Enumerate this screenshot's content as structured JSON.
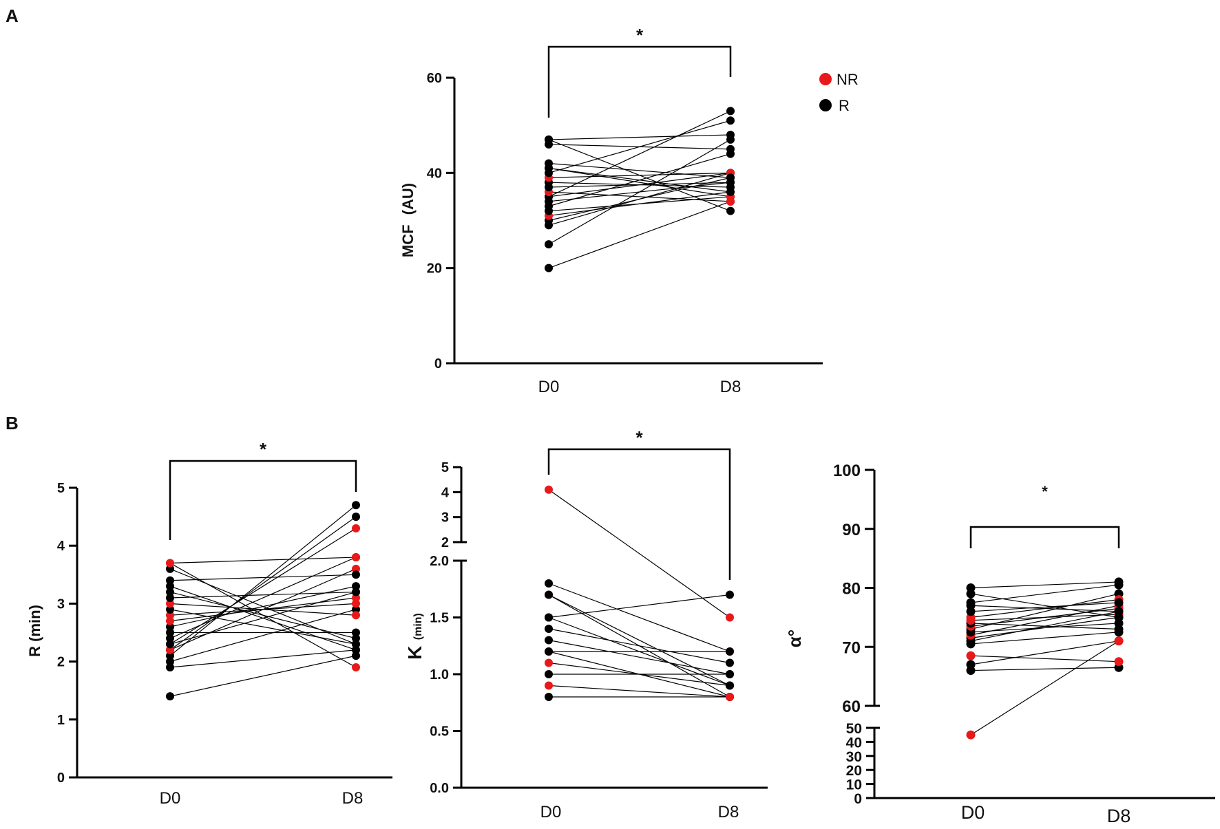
{
  "figure": {
    "panel_a_label": "A",
    "panel_b_label": "B"
  },
  "legend": {
    "nr_label": "NR",
    "r_label": "R",
    "nr_color": "#e8191b",
    "r_color": "#000000"
  },
  "chart_data": [
    {
      "id": "mcf",
      "type": "line",
      "title": "",
      "ylabel_main": "MCF",
      "ylabel_unit": "(AU)",
      "xlabel": "",
      "categories": [
        "D0",
        "D8"
      ],
      "ylim": [
        0,
        60
      ],
      "yticks": [
        0,
        20,
        40,
        60
      ],
      "significance": "*",
      "pairs": [
        {
          "d0": 20,
          "d8": 34,
          "group": "R"
        },
        {
          "d0": 25,
          "d8": 47,
          "group": "R"
        },
        {
          "d0": 29,
          "d8": 40,
          "group": "R"
        },
        {
          "d0": 30,
          "d8": 39,
          "group": "R"
        },
        {
          "d0": 31,
          "d8": 36,
          "group": "NR"
        },
        {
          "d0": 32,
          "d8": 35,
          "group": "R"
        },
        {
          "d0": 33,
          "d8": 44,
          "group": "R"
        },
        {
          "d0": 34,
          "d8": 38,
          "group": "R"
        },
        {
          "d0": 35,
          "d8": 53,
          "group": "R"
        },
        {
          "d0": 35,
          "d8": 40,
          "group": "R"
        },
        {
          "d0": 36,
          "d8": 34,
          "group": "NR"
        },
        {
          "d0": 37,
          "d8": 38,
          "group": "R"
        },
        {
          "d0": 38,
          "d8": 37,
          "group": "R"
        },
        {
          "d0": 39,
          "d8": 40,
          "group": "NR"
        },
        {
          "d0": 40,
          "d8": 51,
          "group": "R"
        },
        {
          "d0": 41,
          "d8": 35,
          "group": "NR"
        },
        {
          "d0": 41,
          "d8": 36,
          "group": "R"
        },
        {
          "d0": 42,
          "d8": 39,
          "group": "R"
        },
        {
          "d0": 46,
          "d8": 45,
          "group": "R"
        },
        {
          "d0": 47,
          "d8": 32,
          "group": "R"
        },
        {
          "d0": 47,
          "d8": 48,
          "group": "R"
        }
      ]
    },
    {
      "id": "r_time",
      "type": "line",
      "title": "",
      "ylabel": "R (min)",
      "categories": [
        "D0",
        "D8"
      ],
      "ylim": [
        0,
        5
      ],
      "yticks": [
        0,
        1,
        2,
        3,
        4,
        5
      ],
      "significance": "*",
      "pairs": [
        {
          "d0": 1.4,
          "d8": 2.1,
          "group": "R"
        },
        {
          "d0": 1.9,
          "d8": 2.2,
          "group": "R"
        },
        {
          "d0": 2.0,
          "d8": 2.9,
          "group": "R"
        },
        {
          "d0": 2.1,
          "d8": 4.7,
          "group": "R"
        },
        {
          "d0": 2.2,
          "d8": 4.5,
          "group": "R"
        },
        {
          "d0": 2.2,
          "d8": 3.6,
          "group": "NR"
        },
        {
          "d0": 2.3,
          "d8": 4.3,
          "group": "NR"
        },
        {
          "d0": 2.3,
          "d8": 3.2,
          "group": "R"
        },
        {
          "d0": 2.4,
          "d8": 3.8,
          "group": "R"
        },
        {
          "d0": 2.5,
          "d8": 2.5,
          "group": "R"
        },
        {
          "d0": 2.6,
          "d8": 3.3,
          "group": "R"
        },
        {
          "d0": 2.7,
          "d8": 3.1,
          "group": "NR"
        },
        {
          "d0": 2.8,
          "d8": 3.0,
          "group": "NR"
        },
        {
          "d0": 2.9,
          "d8": 2.3,
          "group": "R"
        },
        {
          "d0": 3.0,
          "d8": 2.8,
          "group": "NR"
        },
        {
          "d0": 3.1,
          "d8": 3.2,
          "group": "R"
        },
        {
          "d0": 3.2,
          "d8": 2.4,
          "group": "R"
        },
        {
          "d0": 3.3,
          "d8": 2.2,
          "group": "R"
        },
        {
          "d0": 3.4,
          "d8": 3.5,
          "group": "R"
        },
        {
          "d0": 3.6,
          "d8": 2.3,
          "group": "R"
        },
        {
          "d0": 3.7,
          "d8": 3.8,
          "group": "NR"
        },
        {
          "d0": 3.7,
          "d8": 1.9,
          "group": "NR"
        }
      ]
    },
    {
      "id": "k_time",
      "type": "line",
      "title": "",
      "ylabel_main": "K",
      "ylabel_unit": "(min)",
      "categories": [
        "D0",
        "D8"
      ],
      "axis_break": true,
      "lower_ticks": [
        "0.0",
        "0.5",
        "1.0",
        "1.5",
        "2.0"
      ],
      "upper_ticks": [
        "2",
        "3",
        "4",
        "5"
      ],
      "lower_ylim": [
        0,
        2
      ],
      "upper_ylim": [
        2,
        5
      ],
      "significance": "*",
      "pairs": [
        {
          "d0": 0.8,
          "d8": 0.8,
          "group": "R"
        },
        {
          "d0": 0.9,
          "d8": 0.8,
          "group": "NR"
        },
        {
          "d0": 1.0,
          "d8": 1.0,
          "group": "R"
        },
        {
          "d0": 1.1,
          "d8": 0.9,
          "group": "NR"
        },
        {
          "d0": 1.2,
          "d8": 1.2,
          "group": "NR"
        },
        {
          "d0": 1.2,
          "d8": 0.8,
          "group": "R"
        },
        {
          "d0": 1.3,
          "d8": 1.0,
          "group": "R"
        },
        {
          "d0": 1.4,
          "d8": 1.1,
          "group": "R"
        },
        {
          "d0": 1.5,
          "d8": 1.7,
          "group": "R"
        },
        {
          "d0": 1.5,
          "d8": 0.9,
          "group": "R"
        },
        {
          "d0": 1.7,
          "d8": 0.8,
          "group": "NR"
        },
        {
          "d0": 1.8,
          "d8": 1.2,
          "group": "R"
        },
        {
          "d0": 1.7,
          "d8": 0.9,
          "group": "R"
        },
        {
          "d0": 4.1,
          "d8": 1.5,
          "group": "NR"
        }
      ]
    },
    {
      "id": "alpha",
      "type": "line",
      "title": "",
      "ylabel": "α°",
      "categories": [
        "D0",
        "D8"
      ],
      "axis_break": true,
      "upper_ticks": [
        60,
        70,
        80,
        90,
        100
      ],
      "lower_ticks": [
        0,
        10,
        20,
        30,
        40,
        50
      ],
      "upper_ylim": [
        60,
        100
      ],
      "lower_ylim": [
        0,
        50
      ],
      "significance": "*",
      "pairs": [
        {
          "d0": 66.0,
          "d8": 66.5,
          "group": "R"
        },
        {
          "d0": 67.0,
          "d8": 71.0,
          "group": "R"
        },
        {
          "d0": 68.5,
          "d8": 67.5,
          "group": "NR"
        },
        {
          "d0": 70.5,
          "d8": 72.5,
          "group": "R"
        },
        {
          "d0": 71.0,
          "d8": 76.0,
          "group": "R"
        },
        {
          "d0": 71.5,
          "d8": 75.0,
          "group": "R"
        },
        {
          "d0": 72.0,
          "d8": 77.0,
          "group": "NR"
        },
        {
          "d0": 72.5,
          "d8": 74.0,
          "group": "R"
        },
        {
          "d0": 73.0,
          "d8": 79.0,
          "group": "R"
        },
        {
          "d0": 73.5,
          "d8": 76.5,
          "group": "NR"
        },
        {
          "d0": 74.0,
          "d8": 73.0,
          "group": "R"
        },
        {
          "d0": 74.5,
          "d8": 75.5,
          "group": "NR"
        },
        {
          "d0": 75.0,
          "d8": 78.0,
          "group": "NR"
        },
        {
          "d0": 76.0,
          "d8": 77.5,
          "group": "R"
        },
        {
          "d0": 77.0,
          "d8": 76.0,
          "group": "R"
        },
        {
          "d0": 77.5,
          "d8": 80.5,
          "group": "R"
        },
        {
          "d0": 79.0,
          "d8": 75.0,
          "group": "R"
        },
        {
          "d0": 80.0,
          "d8": 81.0,
          "group": "R"
        },
        {
          "d0": 45.0,
          "d8": 71.0,
          "group": "NR"
        }
      ]
    }
  ]
}
